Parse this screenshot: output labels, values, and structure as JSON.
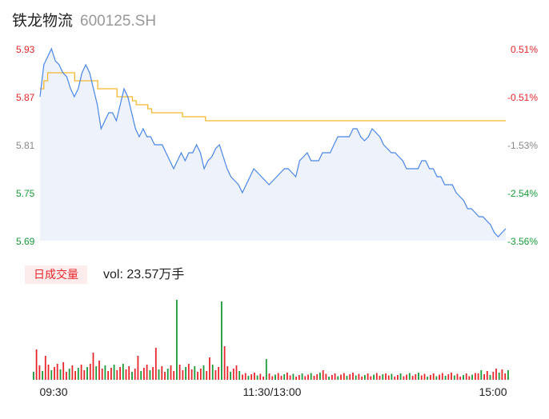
{
  "header": {
    "name": "铁龙物流",
    "code": "600125.SH"
  },
  "volume_panel": {
    "tab_label": "日成交量",
    "vol_text": "vol: 23.57万手"
  },
  "colors": {
    "price_line": "#4a86e8",
    "avg_line": "#f5b731",
    "area_fill": "#edf2fb",
    "up": "#e8262b",
    "down": "#1a9b3a",
    "text": "#222222",
    "muted": "#999999",
    "tab_bg": "#fdecec"
  },
  "chart_data": {
    "type": "line",
    "x_ticks": [
      "09:30",
      "11:30/13:00",
      "15:00"
    ],
    "price_axis": {
      "ticks": [
        "5.93",
        "5.87",
        "5.81",
        "5.75",
        "5.69"
      ],
      "ylim": [
        5.69,
        5.93
      ]
    },
    "pct_axis": {
      "ticks": [
        "0.51%",
        "-0.51%",
        "-1.53%",
        "-2.54%",
        "-3.56%"
      ]
    },
    "prev_close": 5.9,
    "series": [
      {
        "role": "price",
        "values": [
          5.87,
          5.91,
          5.92,
          5.93,
          5.915,
          5.91,
          5.9,
          5.895,
          5.88,
          5.87,
          5.88,
          5.9,
          5.91,
          5.9,
          5.88,
          5.86,
          5.83,
          5.84,
          5.85,
          5.85,
          5.84,
          5.86,
          5.88,
          5.87,
          5.85,
          5.83,
          5.82,
          5.83,
          5.82,
          5.82,
          5.81,
          5.81,
          5.81,
          5.8,
          5.79,
          5.78,
          5.79,
          5.8,
          5.79,
          5.8,
          5.8,
          5.81,
          5.8,
          5.78,
          5.79,
          5.795,
          5.805,
          5.81,
          5.795,
          5.78,
          5.77,
          5.765,
          5.76,
          5.75,
          5.76,
          5.77,
          5.78,
          5.775,
          5.77,
          5.765,
          5.76,
          5.765,
          5.77,
          5.775,
          5.78,
          5.78,
          5.775,
          5.77,
          5.79,
          5.795,
          5.8,
          5.79,
          5.79,
          5.79,
          5.8,
          5.8,
          5.8,
          5.81,
          5.82,
          5.82,
          5.82,
          5.82,
          5.83,
          5.83,
          5.82,
          5.815,
          5.82,
          5.83,
          5.825,
          5.82,
          5.81,
          5.805,
          5.8,
          5.8,
          5.795,
          5.79,
          5.78,
          5.78,
          5.78,
          5.78,
          5.79,
          5.79,
          5.78,
          5.78,
          5.77,
          5.77,
          5.76,
          5.76,
          5.76,
          5.75,
          5.745,
          5.74,
          5.73,
          5.73,
          5.725,
          5.72,
          5.72,
          5.715,
          5.71,
          5.7,
          5.695,
          5.7,
          5.705
        ]
      },
      {
        "role": "avg",
        "values": [
          5.88,
          5.89,
          5.9,
          5.9,
          5.9,
          5.9,
          5.9,
          5.9,
          5.9,
          5.89,
          5.89,
          5.89,
          5.89,
          5.89,
          5.89,
          5.88,
          5.88,
          5.88,
          5.88,
          5.88,
          5.87,
          5.87,
          5.87,
          5.87,
          5.865,
          5.86,
          5.86,
          5.86,
          5.855,
          5.85,
          5.85,
          5.85,
          5.85,
          5.85,
          5.85,
          5.85,
          5.85,
          5.845,
          5.845,
          5.845,
          5.845,
          5.845,
          5.845,
          5.84,
          5.84,
          5.84,
          5.84,
          5.84,
          5.84,
          5.84,
          5.84,
          5.84,
          5.84,
          5.84,
          5.84,
          5.84,
          5.84,
          5.84,
          5.84,
          5.84,
          5.84,
          5.84,
          5.84,
          5.84,
          5.84,
          5.84,
          5.84,
          5.84,
          5.84,
          5.84,
          5.84,
          5.84,
          5.84,
          5.84,
          5.84,
          5.84,
          5.84,
          5.84,
          5.84,
          5.84,
          5.84,
          5.84,
          5.84,
          5.84,
          5.84,
          5.84,
          5.84,
          5.84,
          5.84,
          5.84,
          5.84,
          5.84,
          5.84,
          5.84,
          5.84,
          5.84,
          5.84,
          5.84,
          5.84,
          5.84,
          5.84,
          5.84,
          5.84,
          5.84,
          5.84,
          5.84,
          5.84,
          5.84,
          5.84,
          5.84,
          5.84,
          5.84,
          5.84,
          5.84,
          5.84,
          5.84,
          5.84,
          5.84,
          5.84,
          5.84,
          5.84,
          5.84
        ]
      }
    ]
  }
}
